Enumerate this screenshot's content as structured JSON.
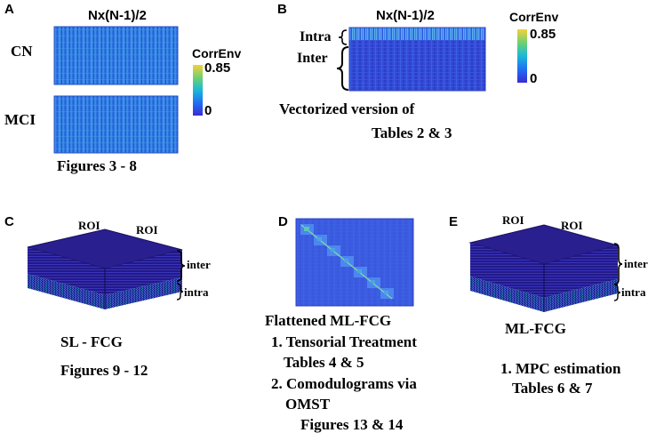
{
  "panel_a": {
    "letter": "A",
    "header": "Nx(N-1)/2",
    "row1": "CN",
    "row2": "MCI",
    "colorbar_title": "CorrEnv",
    "colorbar_max": "0.85",
    "colorbar_min": "0",
    "caption": "Figures 3 - 8"
  },
  "panel_b": {
    "letter": "B",
    "header": "Nx(N-1)/2",
    "intra": "Intra",
    "inter": "Inter",
    "colorbar_title": "CorrEnv",
    "colorbar_max": "0.85",
    "colorbar_min": "0",
    "caption_line1": "Vectorized version of",
    "caption_line2": "Tables 2 & 3"
  },
  "panel_c": {
    "letter": "C",
    "roi_left": "ROI",
    "roi_right": "ROI",
    "inter": "inter",
    "intra": "intra",
    "title": "SL - FCG",
    "caption": "Figures 9 - 12"
  },
  "panel_d": {
    "letter": "D",
    "title": "Flattened ML-FCG",
    "item1": "1. Tensorial Treatment",
    "item1_sub": "Tables 4 & 5",
    "item2": "2. Comodulograms via",
    "item2_cont": "OMST",
    "item2_sub": "Figures 13 & 14"
  },
  "panel_e": {
    "letter": "E",
    "roi_left": "ROI",
    "roi_right": "ROI",
    "inter": "inter",
    "intra": "intra",
    "title": "ML-FCG",
    "item1": "1. MPC estimation",
    "item1_sub": "Tables 6 & 7"
  }
}
